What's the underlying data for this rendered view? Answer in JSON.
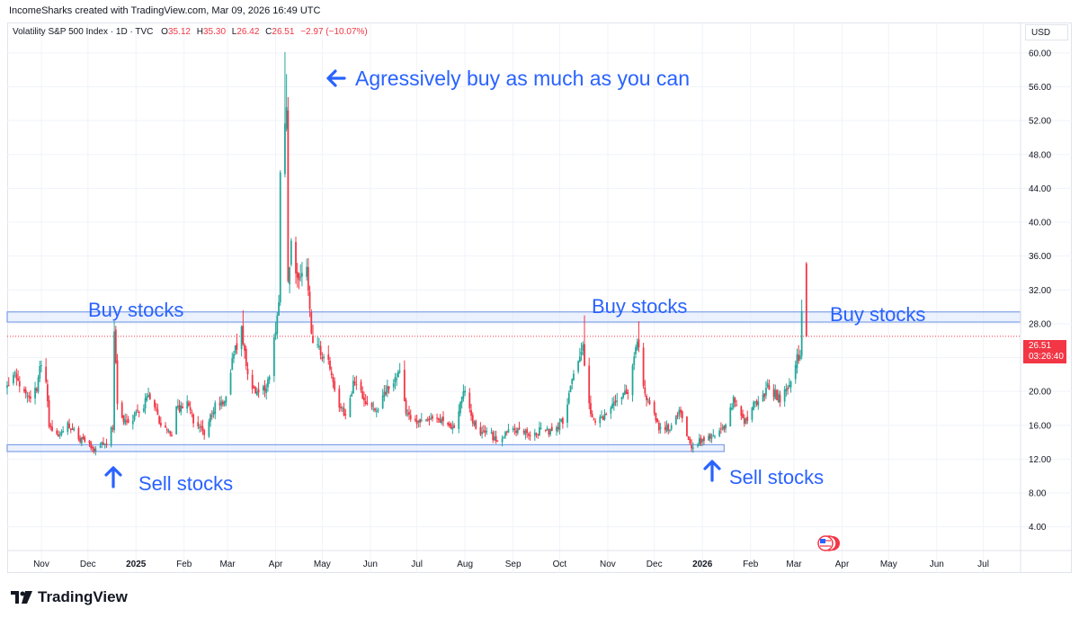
{
  "header": {
    "caption": "IncomeSharks created with TradingView.com, Mar 09, 2026 16:49 UTC"
  },
  "legend": {
    "symbol": "Volatility S&P 500 Index · 1D · TVC",
    "o_label": "O",
    "o_value": "35.12",
    "h_label": "H",
    "h_value": "35.30",
    "l_label": "L",
    "l_value": "26.42",
    "c_label": "C",
    "c_value": "26.51",
    "change": "−2.97 (−10.07%)"
  },
  "currency": "USD",
  "price_tag": {
    "price": "26.51",
    "countdown": "03:26:40"
  },
  "footer": {
    "brand": "TradingView"
  },
  "colors": {
    "up": "#26a69a",
    "down": "#f23645",
    "annotation": "#2962ff",
    "zone_fill": "#dbe6fb",
    "zone_stroke": "#7ea1e8"
  },
  "chart_data": {
    "type": "candlestick",
    "y_range": [
      1.2,
      63.6
    ],
    "y_ticks": [
      "4.00",
      "8.00",
      "12.00",
      "16.00",
      "20.00",
      "24.00",
      "28.00",
      "32.00",
      "36.00",
      "40.00",
      "44.00",
      "48.00",
      "52.00",
      "56.00",
      "60.00"
    ],
    "x_range": [
      "2024-10-10",
      "2026-07-25"
    ],
    "x_ticks": [
      {
        "date": "2024-11-01",
        "label": "Nov"
      },
      {
        "date": "2024-12-01",
        "label": "Dec"
      },
      {
        "date": "2025-01-01",
        "label": "2025",
        "bold": true
      },
      {
        "date": "2025-02-01",
        "label": "Feb"
      },
      {
        "date": "2025-03-01",
        "label": "Mar"
      },
      {
        "date": "2025-04-01",
        "label": "Apr"
      },
      {
        "date": "2025-05-01",
        "label": "May"
      },
      {
        "date": "2025-06-01",
        "label": "Jun"
      },
      {
        "date": "2025-07-01",
        "label": "Jul"
      },
      {
        "date": "2025-08-01",
        "label": "Aug"
      },
      {
        "date": "2025-09-01",
        "label": "Sep"
      },
      {
        "date": "2025-10-01",
        "label": "Oct"
      },
      {
        "date": "2025-11-01",
        "label": "Nov"
      },
      {
        "date": "2025-12-01",
        "label": "Dec"
      },
      {
        "date": "2026-01-01",
        "label": "2026",
        "bold": true
      },
      {
        "date": "2026-02-01",
        "label": "Feb"
      },
      {
        "date": "2026-03-01",
        "label": "Mar"
      },
      {
        "date": "2026-04-01",
        "label": "Apr"
      },
      {
        "date": "2026-05-01",
        "label": "May"
      },
      {
        "date": "2026-06-01",
        "label": "Jun"
      },
      {
        "date": "2026-07-01",
        "label": "Jul"
      }
    ],
    "last_price": 26.51,
    "path": [
      [
        "2024-10-10",
        20.5
      ],
      [
        "2024-10-14",
        22.5
      ],
      [
        "2024-10-18",
        20.8
      ],
      [
        "2024-10-25",
        19.5
      ],
      [
        "2024-10-29",
        20.5
      ],
      [
        "2024-10-31",
        23.2
      ],
      [
        "2024-11-04",
        21.0
      ],
      [
        "2024-11-06",
        16.0
      ],
      [
        "2024-11-12",
        14.8
      ],
      [
        "2024-11-18",
        16.2
      ],
      [
        "2024-11-22",
        15.3
      ],
      [
        "2024-11-27",
        14.2
      ],
      [
        "2024-12-02",
        13.6
      ],
      [
        "2024-12-06",
        13.0
      ],
      [
        "2024-12-10",
        13.9
      ],
      [
        "2024-12-13",
        13.8
      ],
      [
        "2024-12-17",
        15.8
      ],
      [
        "2024-12-18",
        27.6
      ],
      [
        "2024-12-20",
        18.4
      ],
      [
        "2024-12-26",
        16.0
      ],
      [
        "2025-01-03",
        17.8
      ],
      [
        "2025-01-10",
        19.5
      ],
      [
        "2025-01-13",
        18.7
      ],
      [
        "2025-01-17",
        16.0
      ],
      [
        "2025-01-24",
        15.0
      ],
      [
        "2025-01-27",
        17.9
      ],
      [
        "2025-02-03",
        18.6
      ],
      [
        "2025-02-07",
        16.5
      ],
      [
        "2025-02-14",
        15.0
      ],
      [
        "2025-02-21",
        18.2
      ],
      [
        "2025-02-27",
        19.0
      ],
      [
        "2025-03-04",
        23.5
      ],
      [
        "2025-03-10",
        27.8
      ],
      [
        "2025-03-14",
        21.8
      ],
      [
        "2025-03-21",
        19.3
      ],
      [
        "2025-03-28",
        21.6
      ],
      [
        "2025-04-03",
        30.0
      ],
      [
        "2025-04-04",
        45.3
      ],
      [
        "2025-04-08",
        52.3
      ],
      [
        "2025-04-09",
        33.6
      ],
      [
        "2025-04-11",
        37.6
      ],
      [
        "2025-04-16",
        32.6
      ],
      [
        "2025-04-21",
        33.8
      ],
      [
        "2025-04-24",
        26.5
      ],
      [
        "2025-04-30",
        24.7
      ],
      [
        "2025-05-05",
        23.6
      ],
      [
        "2025-05-12",
        18.4
      ],
      [
        "2025-05-16",
        17.2
      ],
      [
        "2025-05-21",
        20.9
      ],
      [
        "2025-05-28",
        19.3
      ],
      [
        "2025-06-04",
        17.7
      ],
      [
        "2025-06-13",
        20.8
      ],
      [
        "2025-06-20",
        22.2
      ],
      [
        "2025-06-24",
        17.5
      ],
      [
        "2025-07-03",
        16.4
      ],
      [
        "2025-07-11",
        16.4
      ],
      [
        "2025-07-18",
        16.5
      ],
      [
        "2025-07-24",
        15.4
      ],
      [
        "2025-08-01",
        20.4
      ],
      [
        "2025-08-08",
        15.2
      ],
      [
        "2025-08-15",
        15.1
      ],
      [
        "2025-08-22",
        14.2
      ],
      [
        "2025-08-29",
        15.4
      ],
      [
        "2025-09-05",
        15.2
      ],
      [
        "2025-09-12",
        14.8
      ],
      [
        "2025-09-19",
        15.5
      ],
      [
        "2025-09-26",
        15.3
      ],
      [
        "2025-10-03",
        16.6
      ],
      [
        "2025-10-10",
        21.7
      ],
      [
        "2025-10-16",
        25.3
      ],
      [
        "2025-10-20",
        18.2
      ],
      [
        "2025-10-24",
        16.4
      ],
      [
        "2025-10-31",
        17.4
      ],
      [
        "2025-11-07",
        19.1
      ],
      [
        "2025-11-14",
        19.8
      ],
      [
        "2025-11-20",
        26.4
      ],
      [
        "2025-11-25",
        19.5
      ],
      [
        "2025-12-01",
        17.2
      ],
      [
        "2025-12-05",
        15.4
      ],
      [
        "2025-12-12",
        15.7
      ],
      [
        "2025-12-17",
        17.6
      ],
      [
        "2025-12-24",
        13.5
      ],
      [
        "2026-01-02",
        14.5
      ],
      [
        "2026-01-09",
        14.7
      ],
      [
        "2026-01-16",
        15.9
      ],
      [
        "2026-01-21",
        19.1
      ],
      [
        "2026-01-28",
        16.4
      ],
      [
        "2026-02-04",
        18.6
      ],
      [
        "2026-02-13",
        20.6
      ],
      [
        "2026-02-20",
        19.1
      ],
      [
        "2026-02-27",
        21.4
      ],
      [
        "2026-03-03",
        23.7
      ],
      [
        "2026-03-05",
        24.5
      ],
      [
        "2026-03-06",
        29.5
      ],
      [
        "2026-03-09",
        26.51
      ]
    ],
    "spikes": [
      [
        "2024-12-18",
        28.3
      ],
      [
        "2025-03-11",
        29.6
      ],
      [
        "2025-04-07",
        60.1
      ],
      [
        "2025-04-08",
        57.5
      ],
      [
        "2025-10-17",
        28.99
      ],
      [
        "2025-11-21",
        28.3
      ],
      [
        "2026-03-09",
        35.3
      ]
    ],
    "zones": [
      {
        "y_low": 28.2,
        "y_high": 29.4,
        "from": "2024-10-08",
        "to": "2026-07-25"
      },
      {
        "y_low": 12.9,
        "y_high": 13.7,
        "from": "2024-10-08",
        "to": "2026-01-15"
      }
    ]
  },
  "annotations": {
    "aggressive": "Agressively buy as much as you can",
    "buy1": "Buy stocks",
    "buy2": "Buy stocks",
    "buy3": "Buy stocks",
    "sell1": "Sell stocks",
    "sell2": "Sell stocks"
  }
}
